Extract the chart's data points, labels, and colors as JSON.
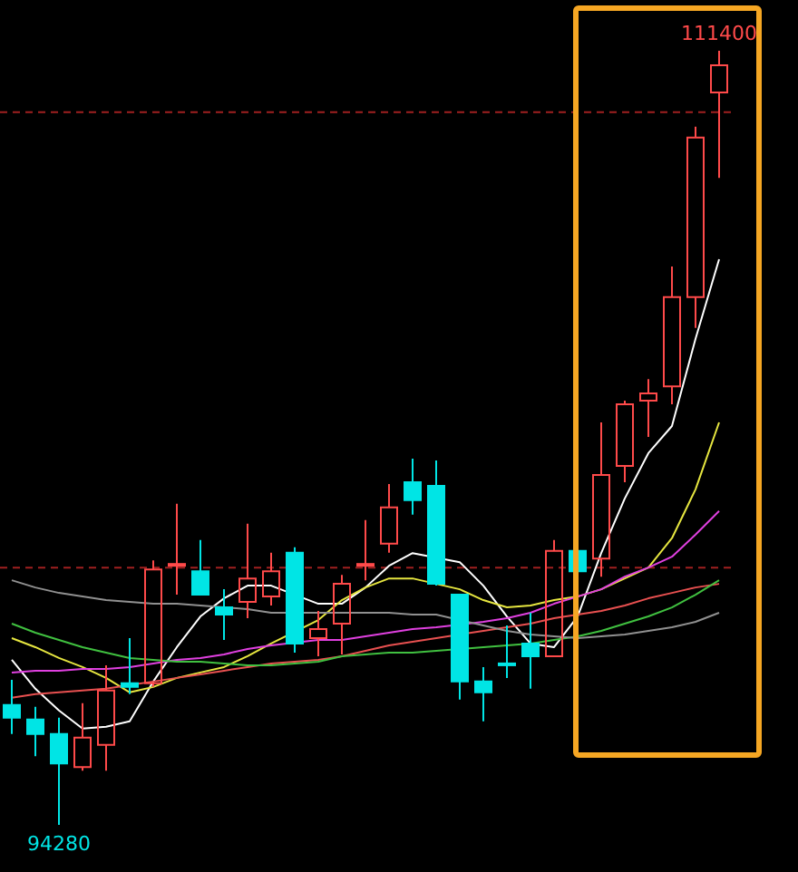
{
  "chart_data": {
    "type": "candlestick",
    "categories": [
      null,
      null,
      null,
      null,
      null,
      null,
      null,
      null,
      null,
      null,
      null,
      null,
      null,
      null,
      null,
      null,
      null,
      null,
      null,
      null,
      null,
      null,
      null,
      null,
      null,
      null,
      null,
      null,
      null,
      null,
      null
    ],
    "ohlc": [
      [
        96930,
        97490,
        96290,
        96650
      ],
      [
        96610,
        96890,
        95800,
        96290
      ],
      [
        96290,
        96650,
        94280,
        95640
      ],
      [
        95560,
        96970,
        95480,
        96210
      ],
      [
        96050,
        97810,
        95480,
        97250
      ],
      [
        97410,
        98410,
        97170,
        97330
      ],
      [
        97410,
        100130,
        97330,
        99930
      ],
      [
        100010,
        101380,
        99370,
        100050
      ],
      [
        99890,
        100580,
        99370,
        99370
      ],
      [
        99090,
        99490,
        98370,
        98930
      ],
      [
        99210,
        100940,
        98850,
        99730
      ],
      [
        99330,
        100300,
        99130,
        99890
      ],
      [
        100300,
        100420,
        98090,
        98290
      ],
      [
        98410,
        99010,
        98010,
        98610
      ],
      [
        98730,
        99810,
        98050,
        99610
      ],
      [
        100010,
        101020,
        99690,
        100050
      ],
      [
        100500,
        101820,
        100300,
        101300
      ],
      [
        101860,
        102380,
        101140,
        101460
      ],
      [
        101780,
        102340,
        99570,
        99610
      ],
      [
        99370,
        99370,
        97050,
        97450
      ],
      [
        97450,
        97770,
        96570,
        97210
      ],
      [
        97850,
        98690,
        97530,
        97810
      ],
      [
        98290,
        98970,
        97290,
        98010
      ],
      [
        98010,
        100580,
        98010,
        100340
      ],
      [
        100340,
        100420,
        99810,
        99890
      ],
      [
        100170,
        103180,
        99770,
        102020
      ],
      [
        102220,
        103660,
        101860,
        103580
      ],
      [
        103660,
        104140,
        102860,
        103820
      ],
      [
        103980,
        106630,
        103580,
        105950
      ],
      [
        105950,
        109720,
        105270,
        109480
      ],
      [
        110480,
        111400,
        108590,
        111080
      ]
    ],
    "colors": [
      "#00e5e5",
      "#00e5e5",
      "#00e5e5",
      "#ff4a4a",
      "#ff4a4a",
      "#00e5e5",
      "#ff4a4a",
      "#ff4a4a",
      "#00e5e5",
      "#00e5e5",
      "#ff4a4a",
      "#ff4a4a",
      "#00e5e5",
      "#ff4a4a",
      "#ff4a4a",
      "#ff4a4a",
      "#ff4a4a",
      "#00e5e5",
      "#00e5e5",
      "#00e5e5",
      "#00e5e5",
      "#00e5e5",
      "#00e5e5",
      "#ff4a4a",
      "#00e5e5",
      "#ff4a4a",
      "#ff4a4a",
      "#ff4a4a",
      "#ff4a4a",
      "#ff4a4a",
      "#ff4a4a"
    ],
    "series": [
      {
        "type": "line",
        "color": "#ffffff",
        "values": [
          97930,
          97290,
          96810,
          96410,
          96450,
          96570,
          97450,
          98210,
          98890,
          99290,
          99570,
          99570,
          null,
          99170,
          99170,
          99530,
          100010,
          100290,
          null,
          100090,
          99570,
          98890,
          98290,
          98210,
          98890,
          100290,
          101500,
          102500,
          103100,
          105030,
          106790
        ]
      },
      {
        "type": "line",
        "color": "#e6e640",
        "values": [
          98410,
          98210,
          97970,
          97770,
          97530,
          97210,
          97330,
          97530,
          97650,
          97770,
          98010,
          98290,
          null,
          98810,
          99250,
          99530,
          99730,
          99730,
          null,
          99490,
          99250,
          99090,
          99130,
          99250,
          99330,
          99490,
          99730,
          99970,
          100620,
          101700,
          103180
        ]
      },
      {
        "type": "line",
        "color": "#e040e0",
        "values": [
          97650,
          97690,
          97690,
          97730,
          97730,
          97770,
          97850,
          97930,
          97970,
          98050,
          98170,
          98250,
          null,
          98370,
          98370,
          98450,
          98530,
          98610,
          98650,
          null,
          98770,
          98850,
          98970,
          99170,
          99330,
          99490,
          99770,
          99970,
          100210,
          100700,
          101220
        ]
      },
      {
        "type": "line",
        "color": "#e85050",
        "values": [
          97090,
          97170,
          97210,
          97250,
          97290,
          97370,
          97450,
          97530,
          97610,
          97690,
          97770,
          97850,
          97890,
          97930,
          98010,
          98130,
          98250,
          98330,
          98410,
          null,
          98570,
          98650,
          98730,
          98850,
          98930,
          99010,
          99130,
          99290,
          99410,
          99530,
          99610
        ]
      },
      {
        "type": "line",
        "color": "#40c040",
        "values": [
          98730,
          98530,
          98370,
          98210,
          98090,
          97970,
          97930,
          97890,
          97890,
          97850,
          97810,
          97810,
          97850,
          97890,
          98010,
          98050,
          98090,
          98090,
          98130,
          null,
          98210,
          98250,
          98290,
          98370,
          98450,
          98570,
          98730,
          98890,
          99090,
          99370,
          99690
        ]
      },
      {
        "type": "line",
        "color": "#909090",
        "values": [
          99690,
          99530,
          99410,
          99330,
          99250,
          99210,
          99170,
          99170,
          99130,
          99090,
          99050,
          98970,
          null,
          98970,
          98970,
          98970,
          98970,
          98930,
          98930,
          null,
          98690,
          98570,
          98490,
          98450,
          98410,
          98450,
          98490,
          98570,
          98650,
          98770,
          98970
        ]
      }
    ],
    "ref_lines": [
      {
        "axis": "y",
        "value": 110040,
        "color": "#a02020",
        "line_style": "dashed"
      },
      {
        "axis": "y",
        "value": 99970,
        "color": "#a02020",
        "line_style": "dashed"
      }
    ],
    "annotations": [
      {
        "text": "111400",
        "y": 111400
      },
      {
        "text": "94280",
        "y": 94280
      }
    ],
    "tick_labels": false
  }
}
